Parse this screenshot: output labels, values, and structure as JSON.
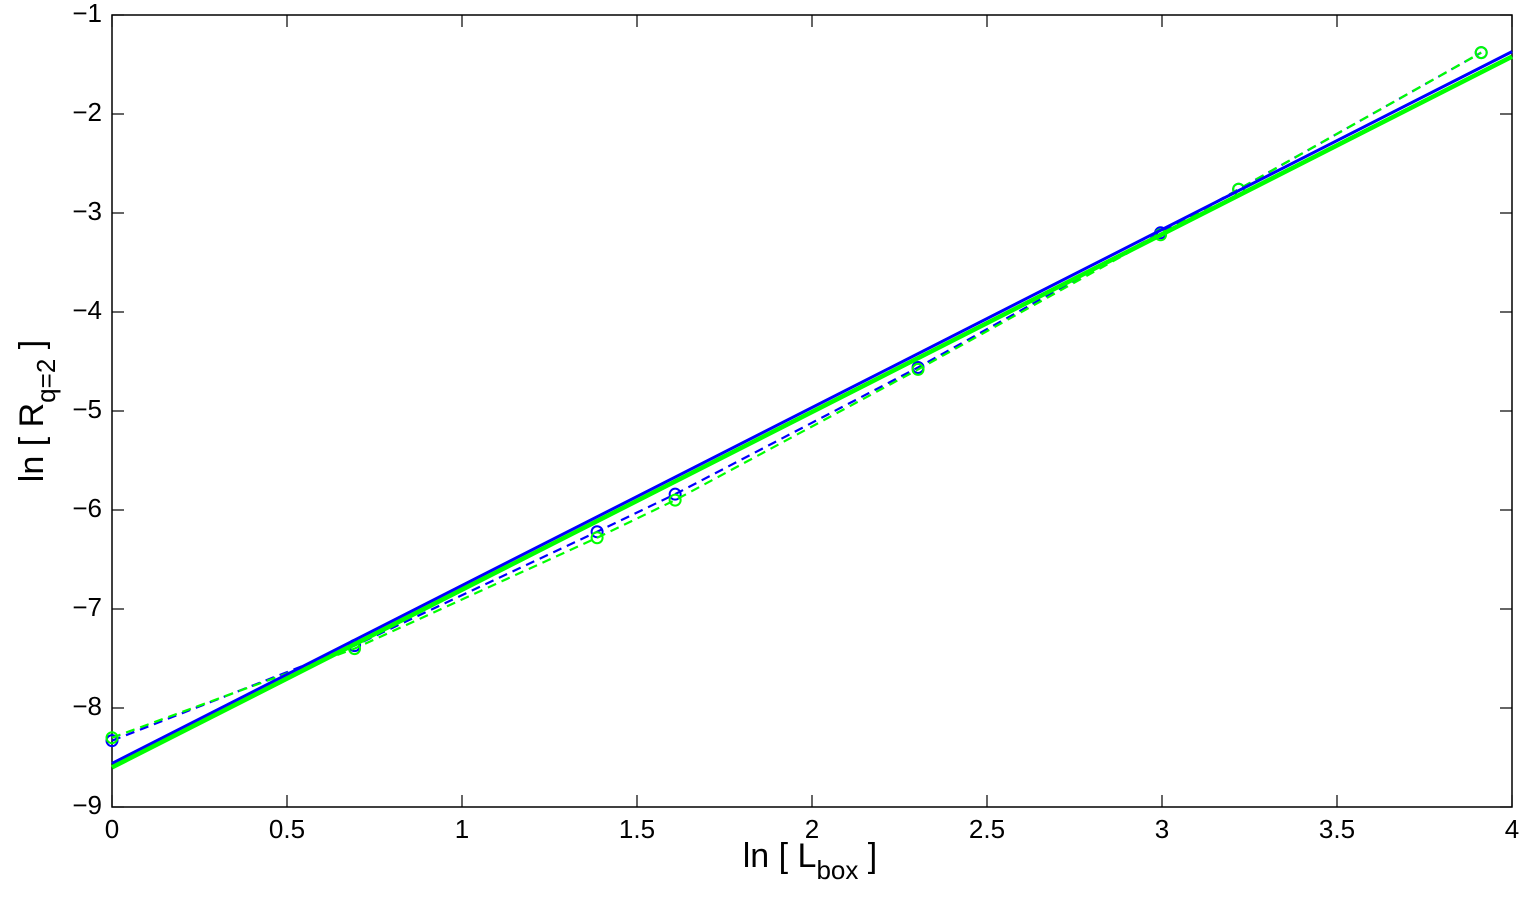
{
  "chart_data": {
    "type": "line",
    "xlabel": {
      "main": "ln [ L",
      "sub": "box",
      "end": " ]"
    },
    "ylabel": {
      "main": "ln [ R",
      "sub": "q=2",
      "end": " ]"
    },
    "xlim": [
      0,
      4
    ],
    "ylim": [
      -9,
      -1
    ],
    "xticks": [
      0,
      0.5,
      1,
      1.5,
      2,
      2.5,
      3,
      3.5,
      4
    ],
    "yticks": [
      {
        "value": -9,
        "label": "−9"
      },
      {
        "value": -8,
        "label": "−8"
      },
      {
        "value": -7,
        "label": "−7"
      },
      {
        "value": -6,
        "label": "−6"
      },
      {
        "value": -5,
        "label": "−5"
      },
      {
        "value": -4,
        "label": "−4"
      },
      {
        "value": -3,
        "label": "−3"
      },
      {
        "value": -2,
        "label": "−2"
      },
      {
        "value": -1,
        "label": "−1"
      }
    ],
    "series": [
      {
        "color": "#0000ff",
        "style": "dashed",
        "marker": "circle",
        "x": [
          0,
          0.693,
          1.386,
          1.609,
          2.303,
          2.996,
          3.219,
          3.912
        ],
        "values": [
          -8.33,
          -7.37,
          -6.22,
          -5.84,
          -4.56,
          -3.2,
          -2.76,
          -1.38
        ]
      },
      {
        "color": "#00ff00",
        "style": "dashed",
        "marker": "circle",
        "x": [
          0,
          0.693,
          1.386,
          1.609,
          2.303,
          2.996,
          3.219,
          3.912
        ],
        "values": [
          -8.3,
          -7.4,
          -6.28,
          -5.9,
          -4.58,
          -3.22,
          -2.76,
          -1.38
        ]
      },
      {
        "color": "#0000ff",
        "style": "solid",
        "x": [
          0,
          4
        ],
        "values": [
          -8.56,
          -1.37
        ]
      },
      {
        "color": "#00ff00",
        "style": "solid",
        "x": [
          0,
          4
        ],
        "values": [
          -8.6,
          -1.42
        ]
      }
    ]
  }
}
